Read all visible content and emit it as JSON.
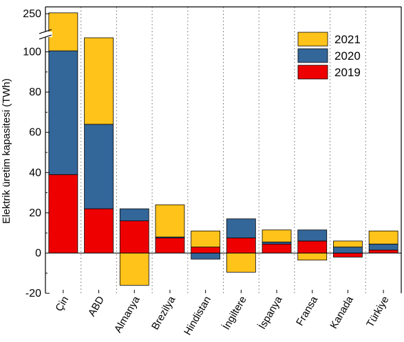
{
  "chart_data": {
    "type": "bar",
    "stacked": true,
    "ylabel": "Elektrik üretim kapasitesi (TWh)",
    "xlabel": "",
    "categories": [
      "Çin",
      "ABD",
      "Almanya",
      "Brezilya",
      "Hindistan",
      "İngiltere",
      "İspanya",
      "Fransa",
      "Kanada",
      "Türkiye"
    ],
    "series": [
      {
        "name": "2019",
        "color": "#ee0000",
        "values": [
          39,
          22,
          16,
          7.5,
          3,
          7.5,
          4.5,
          6,
          -2,
          1.5
        ]
      },
      {
        "name": "2020",
        "color": "#336699",
        "values": [
          61.5,
          42,
          6,
          0.5,
          -3,
          9.5,
          1,
          5.5,
          3,
          3
        ]
      },
      {
        "name": "2021",
        "color": "#ffc31a",
        "values": [
          150,
          43,
          -16,
          16,
          8,
          -9.5,
          6,
          -3.5,
          3,
          6.5
        ]
      }
    ],
    "yticks": [
      -20,
      0,
      20,
      40,
      60,
      80,
      100,
      250
    ],
    "ylim": [
      -20,
      250
    ],
    "axis_break": [
      107,
      240
    ],
    "grid": "vertical dotted lines between categories",
    "legend": {
      "position": "top-right",
      "order": [
        "2021",
        "2020",
        "2019"
      ]
    }
  }
}
